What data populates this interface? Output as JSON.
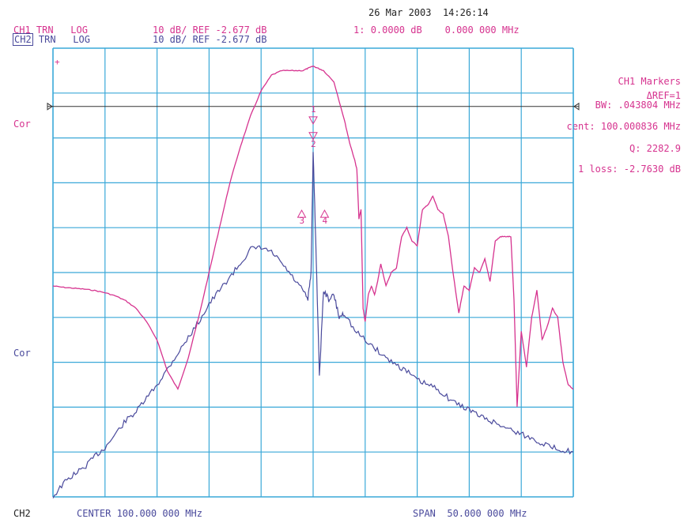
{
  "header": {
    "date": "26 Mar 2003",
    "time": "14:26:14",
    "ch1": {
      "name": "CH1",
      "mode": "TRN",
      "format": "LOG",
      "scale": "10 dB/ REF",
      "ref": "-2.677 dB"
    },
    "ch2": {
      "name": "CH2",
      "mode": "TRN",
      "format": "LOG",
      "scale": "10 dB/ REF",
      "ref": "-2.677 dB"
    },
    "marker_readout": {
      "label": "1:",
      "value": "0.0000 dB",
      "freq": "0.000 000 MHz"
    }
  },
  "side_labels": {
    "ch1_cor": "Cor",
    "ch2_cor": "Cor",
    "ch1_corner": "+"
  },
  "markers_panel": {
    "title": "CH1 Markers",
    "ref": "ΔREF=1",
    "bw": "BW: .043804 MHz",
    "cent": "cent: 100.000836 MHz",
    "q": "Q: 2282.9",
    "loss": "1 loss: -2.7630 dB"
  },
  "marker_ids": [
    "1",
    "2",
    "3",
    "4"
  ],
  "footer": {
    "channel": "CH2",
    "center": "CENTER 100.000 000 MHz",
    "span": "SPAN  50.000 000 MHz"
  },
  "colors": {
    "grid": "#3aa8d8",
    "ch1": "#d6338f",
    "ch2": "#4a4a9c",
    "ref_line": "#333333"
  },
  "chart_data": {
    "type": "line",
    "title": "",
    "xlabel": "",
    "ylabel": "",
    "x_unit": "MHz",
    "xlim": [
      75,
      125
    ],
    "grid": true,
    "divisions": {
      "x": 10,
      "y": 10
    },
    "y_scale_db_per_div": 10,
    "y_unit": "divisions from top",
    "series": [
      {
        "name": "CH1",
        "x": [
          75,
          76,
          77,
          78,
          79,
          80,
          81,
          82,
          83,
          84,
          85,
          86,
          87,
          88,
          89,
          90,
          91,
          92,
          93,
          94,
          95,
          96,
          97,
          98,
          99,
          99.5,
          100,
          100.5,
          101,
          102,
          103,
          103.5,
          104,
          104.2,
          104.4,
          104.6,
          104.8,
          105,
          105.3,
          105.6,
          105.9,
          106.2,
          106.5,
          107,
          107.5,
          108,
          108.5,
          109,
          109.5,
          110,
          110.5,
          111,
          111.5,
          112,
          112.5,
          113,
          113.5,
          114,
          114.5,
          115,
          115.5,
          116,
          116.5,
          117,
          117.5,
          118,
          118.5,
          119,
          119.3,
          119.6,
          120,
          120.5,
          121,
          121.5,
          122,
          122.5,
          123,
          123.5,
          124,
          124.5,
          125
        ],
        "y": [
          5.3,
          5.33,
          5.35,
          5.37,
          5.4,
          5.45,
          5.52,
          5.63,
          5.8,
          6.1,
          6.5,
          7.2,
          7.6,
          6.9,
          6.0,
          5.0,
          4.0,
          3.0,
          2.2,
          1.5,
          0.95,
          0.6,
          0.5,
          0.5,
          0.5,
          0.45,
          0.4,
          0.45,
          0.5,
          0.75,
          1.6,
          2.1,
          2.5,
          2.7,
          3.8,
          3.6,
          5.8,
          6.1,
          5.5,
          5.3,
          5.5,
          5.2,
          4.8,
          5.3,
          5.0,
          4.9,
          4.2,
          4.0,
          4.3,
          4.4,
          3.6,
          3.5,
          3.3,
          3.6,
          3.7,
          4.2,
          5.1,
          5.9,
          5.3,
          5.4,
          4.9,
          5.0,
          4.7,
          5.2,
          4.3,
          4.2,
          4.2,
          4.2,
          5.6,
          8.0,
          6.3,
          7.1,
          6.0,
          5.4,
          6.5,
          6.2,
          5.8,
          6.0,
          7.0,
          7.5,
          7.6
        ]
      },
      {
        "name": "CH2",
        "x": [
          75,
          76,
          77,
          78,
          79,
          80,
          81,
          82,
          83,
          84,
          85,
          86,
          87,
          88,
          89,
          90,
          91,
          92,
          93,
          94,
          95,
          96,
          97,
          98,
          99,
          99.5,
          99.8,
          100,
          100.3,
          100.6,
          101,
          101.5,
          102,
          102.5,
          103,
          104,
          105,
          106,
          107,
          108,
          109,
          110,
          111,
          112,
          113,
          114,
          115,
          116,
          117,
          118,
          119,
          120,
          121,
          122,
          123,
          124,
          125
        ],
        "y": [
          10.0,
          9.7,
          9.5,
          9.35,
          9.1,
          8.9,
          8.6,
          8.3,
          8.1,
          7.8,
          7.5,
          7.15,
          6.8,
          6.45,
          6.1,
          5.7,
          5.4,
          5.1,
          4.8,
          4.48,
          4.45,
          4.55,
          4.8,
          5.1,
          5.4,
          5.6,
          5.0,
          2.3,
          4.7,
          7.3,
          5.4,
          5.6,
          5.5,
          6.0,
          5.9,
          6.3,
          6.5,
          6.7,
          6.9,
          7.05,
          7.2,
          7.4,
          7.5,
          7.6,
          7.8,
          7.95,
          8.05,
          8.2,
          8.3,
          8.4,
          8.5,
          8.6,
          8.7,
          8.8,
          8.9,
          8.95,
          9.0
        ]
      }
    ],
    "reference_line_div": 1.0
  }
}
